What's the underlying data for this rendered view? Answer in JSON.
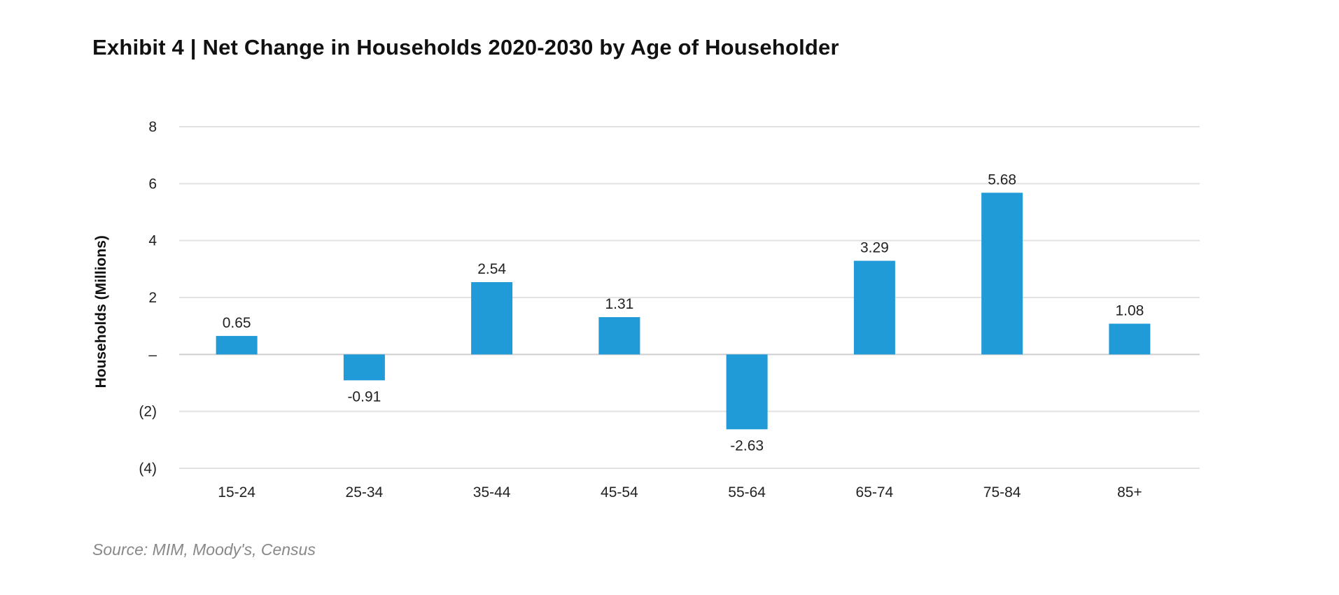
{
  "chart_data": {
    "type": "bar",
    "title": "Exhibit 4  |  Net Change in Households 2020-2030 by Age of Householder",
    "categories": [
      "15-24",
      "25-34",
      "35-44",
      "45-54",
      "55-64",
      "65-74",
      "75-84",
      "85+"
    ],
    "values": [
      0.65,
      -0.91,
      2.54,
      1.31,
      -2.63,
      3.29,
      5.68,
      1.08
    ],
    "data_labels": [
      "0.65",
      "-0.91",
      "2.54",
      "1.31",
      "-2.63",
      "3.29",
      "5.68",
      "1.08"
    ],
    "xlabel": "",
    "ylabel": "Households (Millions)",
    "ylim": [
      -4,
      8
    ],
    "yticks": [
      8,
      6,
      4,
      2,
      0,
      -2,
      -4
    ],
    "ytick_labels": [
      "8",
      "6",
      "4",
      "2",
      "–",
      "(2)",
      "(4)"
    ],
    "grid": true,
    "bar_color": "#209bd7",
    "source": "Source: MIM, Moody's, Census"
  }
}
